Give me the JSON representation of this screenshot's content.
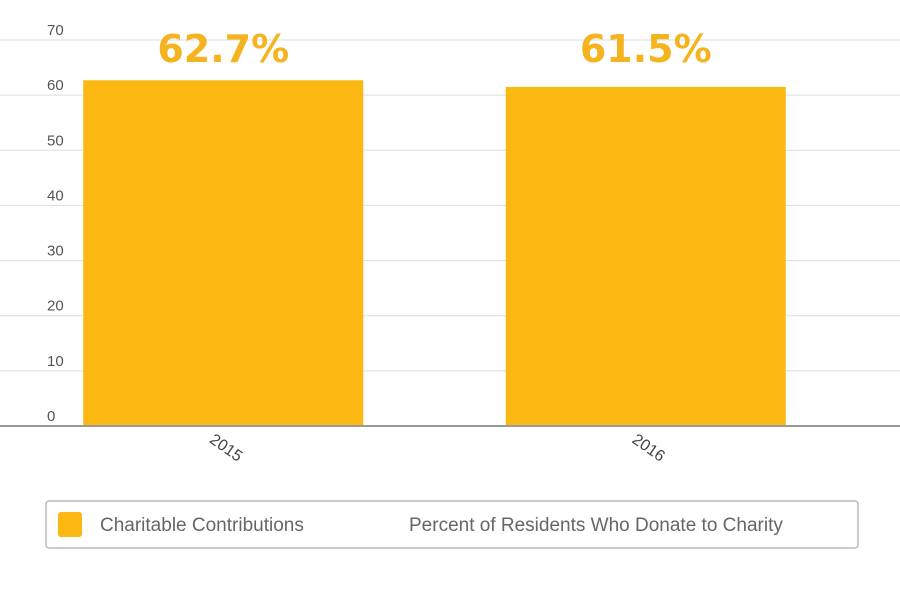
{
  "chart_data": {
    "type": "bar",
    "categories": [
      "2015",
      "2016"
    ],
    "series": [
      {
        "name": "Charitable Contributions",
        "values": [
          62.7,
          61.5
        ],
        "color": "#FBB813"
      }
    ],
    "data_labels": [
      "62.7%",
      "61.5%"
    ],
    "title": "",
    "xlabel": "",
    "ylabel": "",
    "ylim": [
      0,
      70
    ],
    "yticks": [
      0,
      10,
      20,
      30,
      40,
      50,
      60,
      70
    ],
    "grid": true,
    "legend_position": "bottom",
    "legend_entries": [
      {
        "label": "Charitable Contributions",
        "color": "#FBB813"
      },
      {
        "label": "Percent of Residents Who Donate to Charity"
      }
    ],
    "colors": {
      "bar": "#FBB813",
      "data_label": "#F5B41F",
      "grid": "#dddddd",
      "axis": "#999999",
      "legend_border": "#bbbbbb"
    }
  }
}
